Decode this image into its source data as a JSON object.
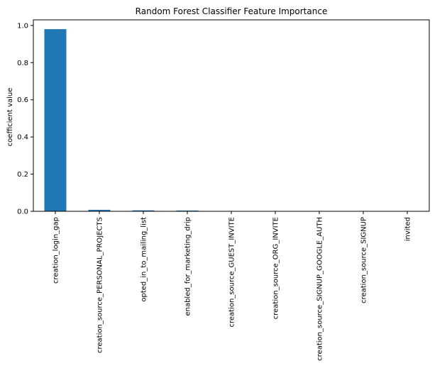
{
  "chart_data": {
    "type": "bar",
    "title": "Random Forest Classifier Feature Importance",
    "xlabel": "",
    "ylabel": "coefficient value",
    "categories": [
      "creation_login_gap",
      "creation_source_PERSONAL_PROJECTS",
      "opted_in_to_mailing_list",
      "enabled_for_marketing_drip",
      "creation_source_GUEST_INVITE",
      "creation_source_ORG_INVITE",
      "creation_source_SIGNUP_GOOGLE_AUTH",
      "creation_source_SIGNUP",
      "invited"
    ],
    "values": [
      0.98,
      0.008,
      0.005,
      0.004,
      0.001,
      0.001,
      0.0005,
      0.0005,
      0.0003
    ],
    "ylim": [
      0,
      1.03
    ],
    "yticks": [
      "0.0",
      "0.2",
      "0.4",
      "0.6",
      "0.8",
      "1.0"
    ],
    "bar_color": "#1f77b4",
    "grid": false,
    "legend": "none"
  }
}
